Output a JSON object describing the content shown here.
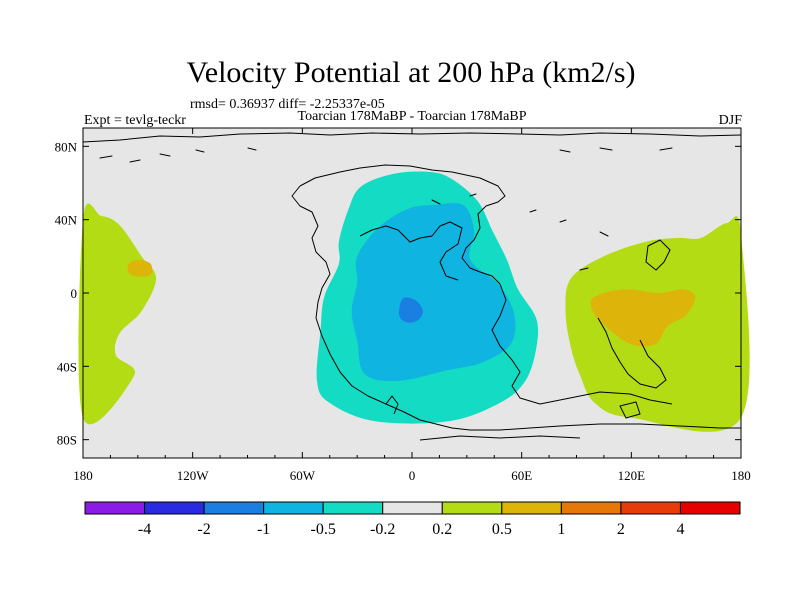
{
  "chart_data": {
    "type": "heatmap",
    "title": "Velocity Potential at 200 hPa (km2/s)",
    "stats": "rmsd= 0.36937  diff= -2.25337e-05",
    "left_label": "Expt = tevlg-teckr",
    "center_label": "Toarcian 178MaBP - Toarcian 178MaBP",
    "right_label": "DJF",
    "x_ticks": [
      "180",
      "120W",
      "60W",
      "0",
      "60E",
      "120E",
      "180"
    ],
    "x_tick_values": [
      -180,
      -120,
      -60,
      0,
      60,
      120,
      180
    ],
    "y_ticks": [
      "80N",
      "40N",
      "0",
      "40S",
      "80S"
    ],
    "y_tick_values": [
      80,
      40,
      0,
      -40,
      -80
    ],
    "xlim": [
      -180,
      180
    ],
    "ylim": [
      -90,
      90
    ],
    "colorbar": {
      "colors": [
        "#8a1ce6",
        "#2a2ae0",
        "#1a7fe0",
        "#0fb4e0",
        "#14dcc4",
        "#e6e6e6",
        "#b4dc14",
        "#dcb40a",
        "#e6780a",
        "#e63c0a",
        "#e60000"
      ],
      "labels": [
        "-4",
        "-2",
        "-1",
        "-0.5",
        "-0.2",
        "0.2",
        "0.5",
        "1",
        "2",
        "4"
      ]
    },
    "field_regions": [
      {
        "level": "0.2 to 0.5",
        "color": "#b4dc14",
        "polygon": [
          [
            -180,
            40
          ],
          [
            -170,
            42
          ],
          [
            -160,
            37
          ],
          [
            -148,
            20
          ],
          [
            -140,
            8
          ],
          [
            -148,
            -10
          ],
          [
            -160,
            -22
          ],
          [
            -162,
            -34
          ],
          [
            -152,
            -45
          ],
          [
            -180,
            -68
          ]
        ]
      },
      {
        "level": "0.2 to 0.5",
        "color": "#b4dc14",
        "polygon": [
          [
            180,
            32
          ],
          [
            172,
            38
          ],
          [
            158,
            30
          ],
          [
            145,
            30
          ],
          [
            128,
            28
          ],
          [
            105,
            20
          ],
          [
            87,
            8
          ],
          [
            84,
            -10
          ],
          [
            87,
            -30
          ],
          [
            92,
            -45
          ],
          [
            100,
            -60
          ],
          [
            120,
            -68
          ],
          [
            180,
            -68
          ]
        ]
      },
      {
        "level": "0.5 to 1",
        "color": "#dcb40a",
        "polygon": [
          [
            -155,
            16
          ],
          [
            -150,
            18
          ],
          [
            -143,
            16
          ],
          [
            -143,
            10
          ],
          [
            -150,
            9
          ],
          [
            -155,
            11
          ]
        ]
      },
      {
        "level": "0.5 to 1",
        "color": "#dcb40a",
        "polygon": [
          [
            98,
            -4
          ],
          [
            105,
            0
          ],
          [
            118,
            2
          ],
          [
            135,
            0
          ],
          [
            148,
            2
          ],
          [
            155,
            -2
          ],
          [
            150,
            -12
          ],
          [
            140,
            -18
          ],
          [
            133,
            -28
          ],
          [
            120,
            -28
          ],
          [
            108,
            -20
          ],
          [
            100,
            -12
          ]
        ]
      },
      {
        "level": "-0.5 to -0.2",
        "color": "#14dcc4",
        "polygon": [
          [
            -35,
            45
          ],
          [
            -28,
            58
          ],
          [
            -10,
            65
          ],
          [
            10,
            66
          ],
          [
            22,
            62
          ],
          [
            36,
            50
          ],
          [
            44,
            34
          ],
          [
            52,
            18
          ],
          [
            58,
            2
          ],
          [
            68,
            -14
          ],
          [
            68,
            -30
          ],
          [
            62,
            -48
          ],
          [
            48,
            -60
          ],
          [
            20,
            -70
          ],
          [
            -20,
            -70
          ],
          [
            -45,
            -60
          ],
          [
            -52,
            -48
          ],
          [
            -50,
            -20
          ],
          [
            -48,
            -2
          ],
          [
            -40,
            16
          ],
          [
            -40,
            28
          ]
        ]
      },
      {
        "level": "-1 to -0.5",
        "color": "#0fb4e0",
        "polygon": [
          [
            -30,
            20
          ],
          [
            -18,
            36
          ],
          [
            -2,
            46
          ],
          [
            12,
            48
          ],
          [
            28,
            48
          ],
          [
            34,
            34
          ],
          [
            32,
            18
          ],
          [
            48,
            4
          ],
          [
            56,
            -12
          ],
          [
            54,
            -28
          ],
          [
            38,
            -38
          ],
          [
            20,
            -42
          ],
          [
            -8,
            -48
          ],
          [
            -26,
            -44
          ],
          [
            -30,
            -26
          ],
          [
            -33,
            -10
          ],
          [
            -30,
            6
          ]
        ]
      },
      {
        "level": "-2 to -1",
        "color": "#1a7fe0",
        "polygon": [
          [
            -5,
            -3
          ],
          [
            2,
            -4
          ],
          [
            6,
            -10
          ],
          [
            3,
            -15
          ],
          [
            -3,
            -16
          ],
          [
            -7,
            -12
          ]
        ]
      }
    ]
  }
}
